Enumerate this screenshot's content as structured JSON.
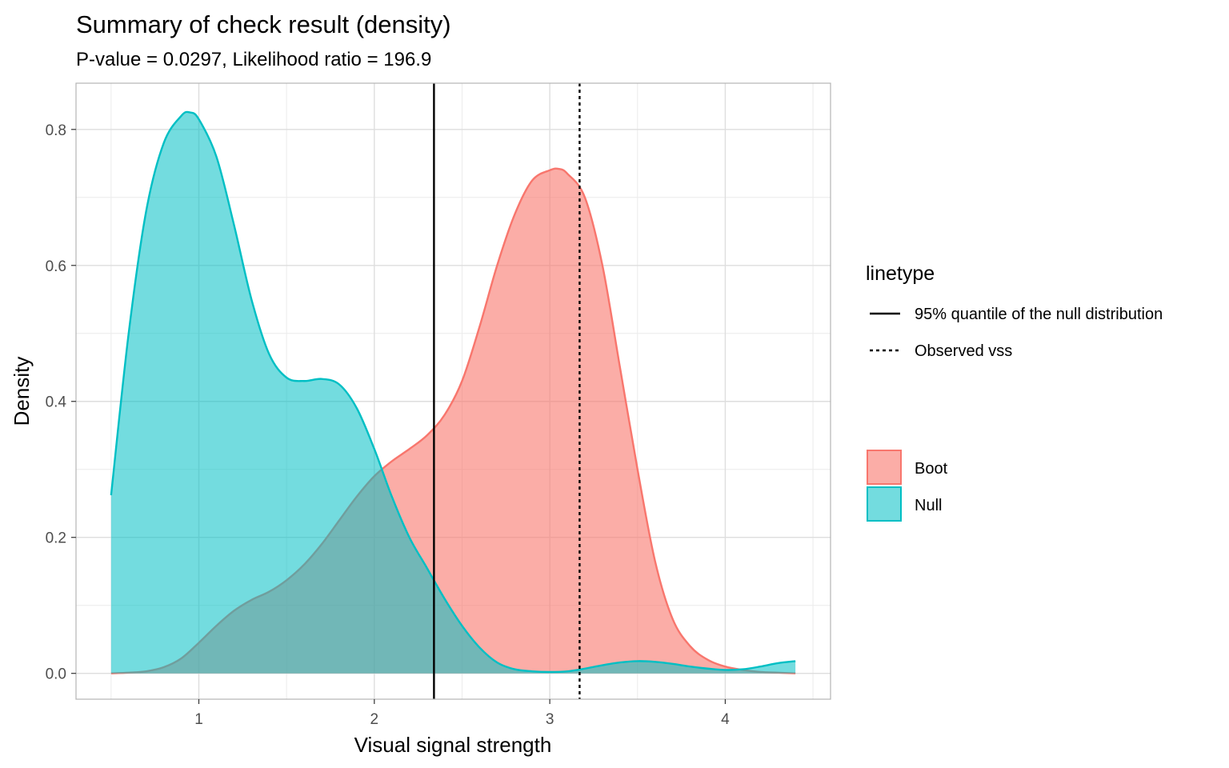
{
  "chart_data": {
    "type": "area",
    "title": "Summary of check result (density)",
    "subtitle": "P-value = 0.0297, Likelihood ratio = 196.9",
    "xlabel": "Visual signal strength",
    "ylabel": "Density",
    "xlim": [
      0.3,
      4.6
    ],
    "ylim": [
      -0.038,
      0.868
    ],
    "x_ticks": [
      1,
      2,
      3,
      4
    ],
    "y_ticks": [
      0.0,
      0.2,
      0.4,
      0.6,
      0.8
    ],
    "x_tick_labels": [
      "1",
      "2",
      "3",
      "4"
    ],
    "y_tick_labels": [
      "0.0",
      "0.2",
      "0.4",
      "0.6",
      "0.8"
    ],
    "grid": true,
    "legend_position": "right",
    "series": [
      {
        "name": "Boot",
        "color": "#F8766D",
        "fill_opacity": 0.6,
        "points": [
          [
            0.5,
            0.0
          ],
          [
            0.6,
            0.001
          ],
          [
            0.7,
            0.003
          ],
          [
            0.8,
            0.009
          ],
          [
            0.9,
            0.022
          ],
          [
            1.0,
            0.045
          ],
          [
            1.1,
            0.07
          ],
          [
            1.2,
            0.092
          ],
          [
            1.3,
            0.108
          ],
          [
            1.4,
            0.12
          ],
          [
            1.5,
            0.137
          ],
          [
            1.6,
            0.16
          ],
          [
            1.7,
            0.19
          ],
          [
            1.8,
            0.225
          ],
          [
            1.9,
            0.26
          ],
          [
            2.0,
            0.29
          ],
          [
            2.1,
            0.312
          ],
          [
            2.2,
            0.33
          ],
          [
            2.3,
            0.35
          ],
          [
            2.4,
            0.38
          ],
          [
            2.5,
            0.43
          ],
          [
            2.6,
            0.51
          ],
          [
            2.7,
            0.6
          ],
          [
            2.8,
            0.675
          ],
          [
            2.9,
            0.725
          ],
          [
            3.0,
            0.74
          ],
          [
            3.05,
            0.742
          ],
          [
            3.1,
            0.735
          ],
          [
            3.2,
            0.7
          ],
          [
            3.3,
            0.6
          ],
          [
            3.4,
            0.45
          ],
          [
            3.5,
            0.3
          ],
          [
            3.6,
            0.165
          ],
          [
            3.7,
            0.08
          ],
          [
            3.8,
            0.04
          ],
          [
            3.9,
            0.02
          ],
          [
            4.0,
            0.01
          ],
          [
            4.1,
            0.005
          ],
          [
            4.2,
            0.002
          ],
          [
            4.3,
            0.001
          ],
          [
            4.4,
            0.0
          ]
        ]
      },
      {
        "name": "Null",
        "color": "#00BFC4",
        "fill_opacity": 0.55,
        "points": [
          [
            0.5,
            0.262
          ],
          [
            0.6,
            0.5
          ],
          [
            0.7,
            0.68
          ],
          [
            0.8,
            0.78
          ],
          [
            0.9,
            0.82
          ],
          [
            0.95,
            0.825
          ],
          [
            1.0,
            0.815
          ],
          [
            1.1,
            0.76
          ],
          [
            1.2,
            0.66
          ],
          [
            1.3,
            0.55
          ],
          [
            1.4,
            0.47
          ],
          [
            1.5,
            0.435
          ],
          [
            1.6,
            0.43
          ],
          [
            1.7,
            0.433
          ],
          [
            1.8,
            0.425
          ],
          [
            1.9,
            0.39
          ],
          [
            2.0,
            0.33
          ],
          [
            2.1,
            0.26
          ],
          [
            2.2,
            0.2
          ],
          [
            2.3,
            0.155
          ],
          [
            2.4,
            0.11
          ],
          [
            2.5,
            0.07
          ],
          [
            2.6,
            0.038
          ],
          [
            2.7,
            0.016
          ],
          [
            2.8,
            0.006
          ],
          [
            2.9,
            0.003
          ],
          [
            3.0,
            0.002
          ],
          [
            3.1,
            0.003
          ],
          [
            3.2,
            0.007
          ],
          [
            3.3,
            0.012
          ],
          [
            3.4,
            0.016
          ],
          [
            3.5,
            0.018
          ],
          [
            3.6,
            0.017
          ],
          [
            3.7,
            0.014
          ],
          [
            3.8,
            0.01
          ],
          [
            3.9,
            0.007
          ],
          [
            4.0,
            0.005
          ],
          [
            4.1,
            0.006
          ],
          [
            4.2,
            0.01
          ],
          [
            4.3,
            0.015
          ],
          [
            4.4,
            0.018
          ]
        ]
      }
    ],
    "vlines": [
      {
        "x": 2.34,
        "linetype": "solid",
        "label": "95% quantile of the null distribution"
      },
      {
        "x": 3.17,
        "linetype": "dashed",
        "label": "Observed vss"
      }
    ],
    "legends": {
      "linetype_title": "linetype",
      "linetype_items": [
        {
          "style": "solid",
          "label": "95% quantile of the null distribution"
        },
        {
          "style": "dashed",
          "label": "Observed vss"
        }
      ],
      "fill_items": [
        {
          "label": "Boot",
          "color": "#F8766D"
        },
        {
          "label": "Null",
          "color": "#00BFC4"
        }
      ]
    }
  }
}
